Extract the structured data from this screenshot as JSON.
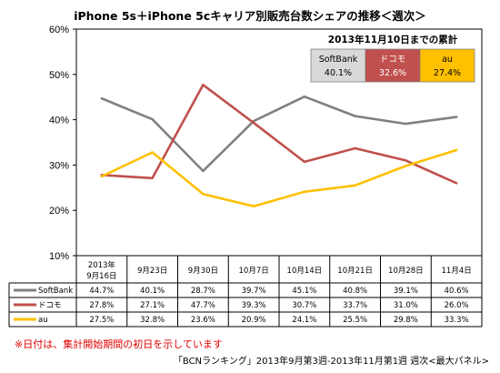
{
  "chart_data": {
    "type": "line",
    "title": "iPhone 5s＋iPhone 5cキャリア別販売台数シェアの推移＜週次＞",
    "categories": [
      "2013年9月16日",
      "9月23日",
      "9月30日",
      "10月7日",
      "10月14日",
      "10月21日",
      "10月28日",
      "11月4日"
    ],
    "y_ticks": [
      "10%",
      "20%",
      "30%",
      "40%",
      "50%",
      "60%"
    ],
    "ylim": [
      10,
      60
    ],
    "grid": false,
    "series": [
      {
        "name": "SoftBank",
        "color": "#808080",
        "values": [
          44.7,
          40.1,
          28.7,
          39.7,
          45.1,
          40.8,
          39.1,
          40.6
        ],
        "labels": [
          "44.7%",
          "40.1%",
          "28.7%",
          "39.7%",
          "45.1%",
          "40.8%",
          "39.1%",
          "40.6%"
        ]
      },
      {
        "name": "ドコモ",
        "color": "#c0504d",
        "values": [
          27.8,
          27.1,
          47.7,
          39.3,
          30.7,
          33.7,
          31.0,
          26.0
        ],
        "labels": [
          "27.8%",
          "27.1%",
          "47.7%",
          "39.3%",
          "30.7%",
          "33.7%",
          "31.0%",
          "26.0%"
        ]
      },
      {
        "name": "au",
        "color": "#ffc000",
        "values": [
          27.5,
          32.8,
          23.6,
          20.9,
          24.1,
          25.5,
          29.8,
          33.3
        ],
        "labels": [
          "27.5%",
          "32.8%",
          "23.6%",
          "20.9%",
          "24.1%",
          "25.5%",
          "29.8%",
          "33.3%"
        ]
      }
    ],
    "cumulative_box": {
      "title": "2013年11月10日までの累計",
      "items": [
        {
          "name": "SoftBank",
          "value": "40.1%",
          "bg": "#d9d9d9",
          "color": "#000000"
        },
        {
          "name": "ドコモ",
          "value": "32.6%",
          "bg": "#c0504d",
          "color": "#ffffff"
        },
        {
          "name": "au",
          "value": "27.4%",
          "bg": "#ffc000",
          "color": "#000000"
        }
      ]
    }
  },
  "note": "※日付は、集計開始期間の初日を示しています",
  "source": "「BCNランキング」2013年9月第3週-2013年11月第1週 週次<最大パネル>"
}
